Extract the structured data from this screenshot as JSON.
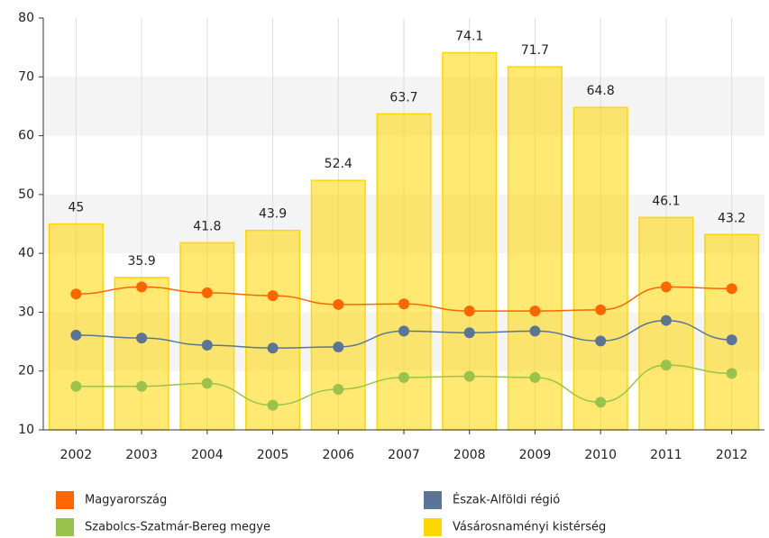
{
  "chart_data": {
    "type": "bar",
    "categories": [
      "2002",
      "2003",
      "2004",
      "2005",
      "2006",
      "2007",
      "2008",
      "2009",
      "2010",
      "2011",
      "2012"
    ],
    "series": [
      {
        "name": "Magyarország",
        "type": "line",
        "color": "#ff6600",
        "values": [
          33.1,
          34.3,
          33.3,
          32.8,
          31.3,
          31.4,
          30.2,
          30.2,
          30.4,
          34.3,
          34.0
        ]
      },
      {
        "name": "Észak-Alföldi régió",
        "type": "line",
        "color": "#5b7597",
        "values": [
          26.1,
          25.6,
          24.4,
          23.9,
          24.1,
          26.8,
          26.5,
          26.8,
          25.1,
          28.6,
          25.3
        ]
      },
      {
        "name": "Szabolcs-Szatmár-Bereg megye",
        "type": "line",
        "color": "#99c34a",
        "values": [
          17.4,
          17.4,
          17.9,
          14.2,
          16.9,
          18.9,
          19.1,
          18.9,
          14.7,
          21.0,
          19.6
        ]
      },
      {
        "name": "Vásárosnaményi kistérség",
        "type": "bar",
        "color": "#ffd700",
        "values": [
          45,
          35.9,
          41.8,
          43.9,
          52.4,
          63.7,
          74.1,
          71.7,
          64.8,
          46.1,
          43.2
        ]
      }
    ],
    "ylim": [
      10,
      80
    ],
    "yticks": [
      10,
      20,
      30,
      40,
      50,
      60,
      70,
      80
    ],
    "grid": true,
    "legend": "bottom"
  }
}
